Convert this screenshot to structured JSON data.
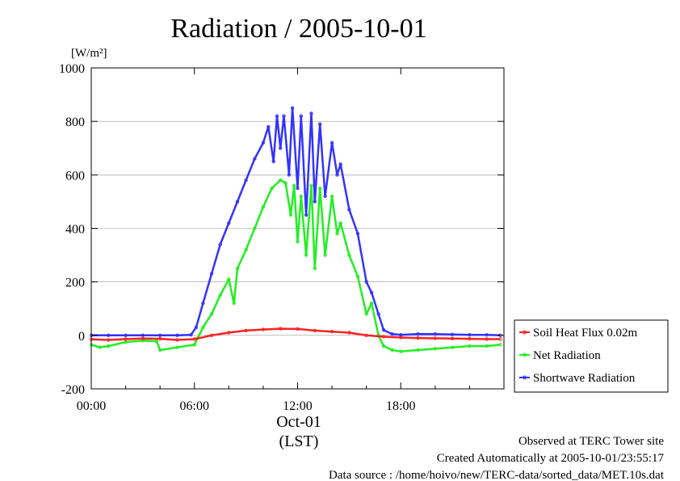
{
  "chart_data": {
    "type": "line",
    "title": "Radiation / 2005-10-01",
    "unit_label": "[W/m²]",
    "xlabel": "(LST)",
    "date_label": "Oct-01",
    "x_ticks": [
      {
        "hour": 0,
        "label": "00:00"
      },
      {
        "hour": 6,
        "label": "06:00"
      },
      {
        "hour": 12,
        "label": "12:00"
      },
      {
        "hour": 18,
        "label": "18:00"
      }
    ],
    "y_ticks": [
      {
        "value": -200,
        "label": "-200"
      },
      {
        "value": 0,
        "label": "0"
      },
      {
        "value": 200,
        "label": "200"
      },
      {
        "value": 400,
        "label": "400"
      },
      {
        "value": 600,
        "label": "600"
      },
      {
        "value": 800,
        "label": "800"
      },
      {
        "value": 1000,
        "label": "1000"
      }
    ],
    "xlim": [
      0,
      24
    ],
    "ylim": [
      -200,
      1000
    ],
    "grid": "horizontal",
    "legend_position": "right",
    "series": [
      {
        "name": "Soil Heat Flux 0.02m",
        "color": "#ff2222",
        "points": [
          [
            0,
            -15
          ],
          [
            1,
            -17
          ],
          [
            2,
            -14
          ],
          [
            3,
            -12
          ],
          [
            4,
            -13
          ],
          [
            5,
            -17
          ],
          [
            6,
            -14
          ],
          [
            7,
            0
          ],
          [
            8,
            10
          ],
          [
            9,
            18
          ],
          [
            10,
            22
          ],
          [
            11,
            25
          ],
          [
            12,
            24
          ],
          [
            13,
            18
          ],
          [
            14,
            14
          ],
          [
            15,
            10
          ],
          [
            16,
            0
          ],
          [
            17,
            -5
          ],
          [
            18,
            -8
          ],
          [
            19,
            -10
          ],
          [
            20,
            -11
          ],
          [
            21,
            -12
          ],
          [
            22,
            -13
          ],
          [
            23,
            -14
          ],
          [
            23.8,
            -14
          ]
        ]
      },
      {
        "name": "Net Radiation",
        "color": "#22ee22",
        "points": [
          [
            0,
            -35
          ],
          [
            0.5,
            -45
          ],
          [
            1,
            -40
          ],
          [
            2,
            -25
          ],
          [
            3,
            -20
          ],
          [
            3.8,
            -22
          ],
          [
            4,
            -55
          ],
          [
            5,
            -45
          ],
          [
            6,
            -35
          ],
          [
            6.2,
            -10
          ],
          [
            6.5,
            30
          ],
          [
            7,
            80
          ],
          [
            7.5,
            150
          ],
          [
            8,
            210
          ],
          [
            8.3,
            120
          ],
          [
            8.5,
            250
          ],
          [
            9,
            320
          ],
          [
            9.5,
            400
          ],
          [
            10,
            480
          ],
          [
            10.5,
            550
          ],
          [
            11,
            580
          ],
          [
            11.3,
            570
          ],
          [
            11.6,
            450
          ],
          [
            11.8,
            560
          ],
          [
            12,
            350
          ],
          [
            12.2,
            520
          ],
          [
            12.5,
            300
          ],
          [
            12.8,
            560
          ],
          [
            13,
            250
          ],
          [
            13.3,
            550
          ],
          [
            13.6,
            300
          ],
          [
            14,
            520
          ],
          [
            14.3,
            380
          ],
          [
            14.5,
            420
          ],
          [
            15,
            300
          ],
          [
            15.5,
            220
          ],
          [
            16,
            80
          ],
          [
            16.3,
            120
          ],
          [
            16.7,
            0
          ],
          [
            17,
            -40
          ],
          [
            17.5,
            -55
          ],
          [
            18,
            -60
          ],
          [
            19,
            -55
          ],
          [
            20,
            -50
          ],
          [
            21,
            -45
          ],
          [
            22,
            -40
          ],
          [
            23,
            -40
          ],
          [
            23.8,
            -35
          ]
        ]
      },
      {
        "name": "Shortwave Radiation",
        "color": "#3333ff",
        "points": [
          [
            0,
            0
          ],
          [
            1,
            0
          ],
          [
            2,
            0
          ],
          [
            3,
            0
          ],
          [
            4,
            0
          ],
          [
            5,
            0
          ],
          [
            5.8,
            2
          ],
          [
            6.1,
            30
          ],
          [
            6.5,
            120
          ],
          [
            7,
            230
          ],
          [
            7.5,
            340
          ],
          [
            8,
            420
          ],
          [
            8.5,
            500
          ],
          [
            9,
            580
          ],
          [
            9.5,
            660
          ],
          [
            10,
            720
          ],
          [
            10.3,
            780
          ],
          [
            10.6,
            650
          ],
          [
            10.8,
            820
          ],
          [
            11,
            700
          ],
          [
            11.2,
            820
          ],
          [
            11.5,
            600
          ],
          [
            11.7,
            850
          ],
          [
            12,
            550
          ],
          [
            12.2,
            820
          ],
          [
            12.5,
            450
          ],
          [
            12.8,
            830
          ],
          [
            13,
            500
          ],
          [
            13.3,
            790
          ],
          [
            13.6,
            520
          ],
          [
            14,
            720
          ],
          [
            14.3,
            600
          ],
          [
            14.5,
            640
          ],
          [
            15,
            470
          ],
          [
            15.5,
            380
          ],
          [
            16,
            200
          ],
          [
            16.3,
            160
          ],
          [
            16.7,
            80
          ],
          [
            17,
            20
          ],
          [
            17.5,
            5
          ],
          [
            18,
            2
          ],
          [
            19,
            5
          ],
          [
            20,
            5
          ],
          [
            21,
            3
          ],
          [
            22,
            2
          ],
          [
            23,
            2
          ],
          [
            23.8,
            0
          ]
        ]
      }
    ]
  },
  "footer": {
    "site": "Observed at TERC Tower site",
    "created": "Created Automatically at 2005-10-01/23:55:17",
    "source": "Data source : /home/hoivo/new/TERC-data/sorted_data/MET.10s.dat"
  }
}
